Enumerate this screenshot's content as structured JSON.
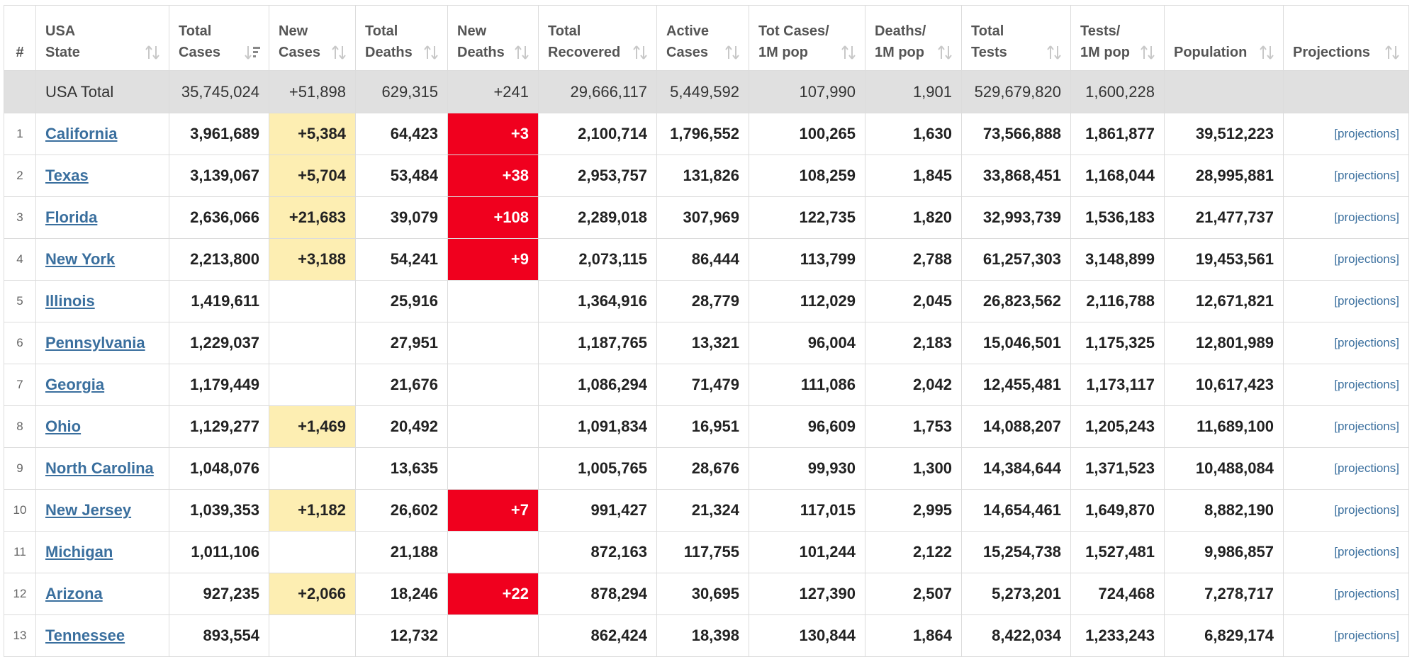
{
  "table": {
    "headers": [
      {
        "key": "num",
        "line1": "#",
        "line2": "",
        "sortable": false
      },
      {
        "key": "state",
        "line1": "USA",
        "line2": "State",
        "sortable": true
      },
      {
        "key": "total_cases",
        "line1": "Total",
        "line2": "Cases",
        "sortable": true,
        "active_sort": true
      },
      {
        "key": "new_cases",
        "line1": "New",
        "line2": "Cases",
        "sortable": true
      },
      {
        "key": "total_deaths",
        "line1": "Total",
        "line2": "Deaths",
        "sortable": true
      },
      {
        "key": "new_deaths",
        "line1": "New",
        "line2": "Deaths",
        "sortable": true
      },
      {
        "key": "total_recovered",
        "line1": "Total",
        "line2": "Recovered",
        "sortable": true
      },
      {
        "key": "active_cases",
        "line1": "Active",
        "line2": "Cases",
        "sortable": true
      },
      {
        "key": "cases_per_1m",
        "line1": "Tot Cases/",
        "line2": "1M pop",
        "sortable": true
      },
      {
        "key": "deaths_per_1m",
        "line1": "Deaths/",
        "line2": "1M pop",
        "sortable": true
      },
      {
        "key": "total_tests",
        "line1": "Total",
        "line2": "Tests",
        "sortable": true
      },
      {
        "key": "tests_per_1m",
        "line1": "Tests/",
        "line2": "1M pop",
        "sortable": true
      },
      {
        "key": "population",
        "line1": "",
        "line2": "Population",
        "sortable": true
      },
      {
        "key": "projections",
        "line1": "",
        "line2": "Projections",
        "sortable": true
      }
    ],
    "total": {
      "state": "USA Total",
      "total_cases": "35,745,024",
      "new_cases": "+51,898",
      "total_deaths": "629,315",
      "new_deaths": "+241",
      "total_recovered": "29,666,117",
      "active_cases": "5,449,592",
      "cases_per_1m": "107,990",
      "deaths_per_1m": "1,901",
      "total_tests": "529,679,820",
      "tests_per_1m": "1,600,228",
      "population": "",
      "projections": ""
    },
    "projections_label": "[projections]",
    "rows": [
      {
        "num": "1",
        "state": "California",
        "total_cases": "3,961,689",
        "new_cases": "+5,384",
        "total_deaths": "64,423",
        "new_deaths": "+3",
        "total_recovered": "2,100,714",
        "active_cases": "1,796,552",
        "cases_per_1m": "100,265",
        "deaths_per_1m": "1,630",
        "total_tests": "73,566,888",
        "tests_per_1m": "1,861,877",
        "population": "39,512,223"
      },
      {
        "num": "2",
        "state": "Texas",
        "total_cases": "3,139,067",
        "new_cases": "+5,704",
        "total_deaths": "53,484",
        "new_deaths": "+38",
        "total_recovered": "2,953,757",
        "active_cases": "131,826",
        "cases_per_1m": "108,259",
        "deaths_per_1m": "1,845",
        "total_tests": "33,868,451",
        "tests_per_1m": "1,168,044",
        "population": "28,995,881"
      },
      {
        "num": "3",
        "state": "Florida",
        "total_cases": "2,636,066",
        "new_cases": "+21,683",
        "total_deaths": "39,079",
        "new_deaths": "+108",
        "total_recovered": "2,289,018",
        "active_cases": "307,969",
        "cases_per_1m": "122,735",
        "deaths_per_1m": "1,820",
        "total_tests": "32,993,739",
        "tests_per_1m": "1,536,183",
        "population": "21,477,737"
      },
      {
        "num": "4",
        "state": "New York",
        "total_cases": "2,213,800",
        "new_cases": "+3,188",
        "total_deaths": "54,241",
        "new_deaths": "+9",
        "total_recovered": "2,073,115",
        "active_cases": "86,444",
        "cases_per_1m": "113,799",
        "deaths_per_1m": "2,788",
        "total_tests": "61,257,303",
        "tests_per_1m": "3,148,899",
        "population": "19,453,561"
      },
      {
        "num": "5",
        "state": "Illinois",
        "total_cases": "1,419,611",
        "new_cases": "",
        "total_deaths": "25,916",
        "new_deaths": "",
        "total_recovered": "1,364,916",
        "active_cases": "28,779",
        "cases_per_1m": "112,029",
        "deaths_per_1m": "2,045",
        "total_tests": "26,823,562",
        "tests_per_1m": "2,116,788",
        "population": "12,671,821"
      },
      {
        "num": "6",
        "state": "Pennsylvania",
        "total_cases": "1,229,037",
        "new_cases": "",
        "total_deaths": "27,951",
        "new_deaths": "",
        "total_recovered": "1,187,765",
        "active_cases": "13,321",
        "cases_per_1m": "96,004",
        "deaths_per_1m": "2,183",
        "total_tests": "15,046,501",
        "tests_per_1m": "1,175,325",
        "population": "12,801,989"
      },
      {
        "num": "7",
        "state": "Georgia",
        "total_cases": "1,179,449",
        "new_cases": "",
        "total_deaths": "21,676",
        "new_deaths": "",
        "total_recovered": "1,086,294",
        "active_cases": "71,479",
        "cases_per_1m": "111,086",
        "deaths_per_1m": "2,042",
        "total_tests": "12,455,481",
        "tests_per_1m": "1,173,117",
        "population": "10,617,423"
      },
      {
        "num": "8",
        "state": "Ohio",
        "total_cases": "1,129,277",
        "new_cases": "+1,469",
        "total_deaths": "20,492",
        "new_deaths": "",
        "total_recovered": "1,091,834",
        "active_cases": "16,951",
        "cases_per_1m": "96,609",
        "deaths_per_1m": "1,753",
        "total_tests": "14,088,207",
        "tests_per_1m": "1,205,243",
        "population": "11,689,100"
      },
      {
        "num": "9",
        "state": "North Carolina",
        "total_cases": "1,048,076",
        "new_cases": "",
        "total_deaths": "13,635",
        "new_deaths": "",
        "total_recovered": "1,005,765",
        "active_cases": "28,676",
        "cases_per_1m": "99,930",
        "deaths_per_1m": "1,300",
        "total_tests": "14,384,644",
        "tests_per_1m": "1,371,523",
        "population": "10,488,084"
      },
      {
        "num": "10",
        "state": "New Jersey",
        "total_cases": "1,039,353",
        "new_cases": "+1,182",
        "total_deaths": "26,602",
        "new_deaths": "+7",
        "total_recovered": "991,427",
        "active_cases": "21,324",
        "cases_per_1m": "117,015",
        "deaths_per_1m": "2,995",
        "total_tests": "14,654,461",
        "tests_per_1m": "1,649,870",
        "population": "8,882,190"
      },
      {
        "num": "11",
        "state": "Michigan",
        "total_cases": "1,011,106",
        "new_cases": "",
        "total_deaths": "21,188",
        "new_deaths": "",
        "total_recovered": "872,163",
        "active_cases": "117,755",
        "cases_per_1m": "101,244",
        "deaths_per_1m": "2,122",
        "total_tests": "15,254,738",
        "tests_per_1m": "1,527,481",
        "population": "9,986,857"
      },
      {
        "num": "12",
        "state": "Arizona",
        "total_cases": "927,235",
        "new_cases": "+2,066",
        "total_deaths": "18,246",
        "new_deaths": "+22",
        "total_recovered": "878,294",
        "active_cases": "30,695",
        "cases_per_1m": "127,390",
        "deaths_per_1m": "2,507",
        "total_tests": "5,273,201",
        "tests_per_1m": "724,468",
        "population": "7,278,717"
      },
      {
        "num": "13",
        "state": "Tennessee",
        "total_cases": "893,554",
        "new_cases": "",
        "total_deaths": "12,732",
        "new_deaths": "",
        "total_recovered": "862,424",
        "active_cases": "18,398",
        "cases_per_1m": "130,844",
        "deaths_per_1m": "1,864",
        "total_tests": "8,422,034",
        "tests_per_1m": "1,233,243",
        "population": "6,829,174"
      }
    ],
    "colors": {
      "new_cases_highlight": "#fdeeb2",
      "new_deaths_highlight": "#f0001e",
      "total_row_bg": "#e0e0e0",
      "link": "#3a6f9e"
    }
  }
}
